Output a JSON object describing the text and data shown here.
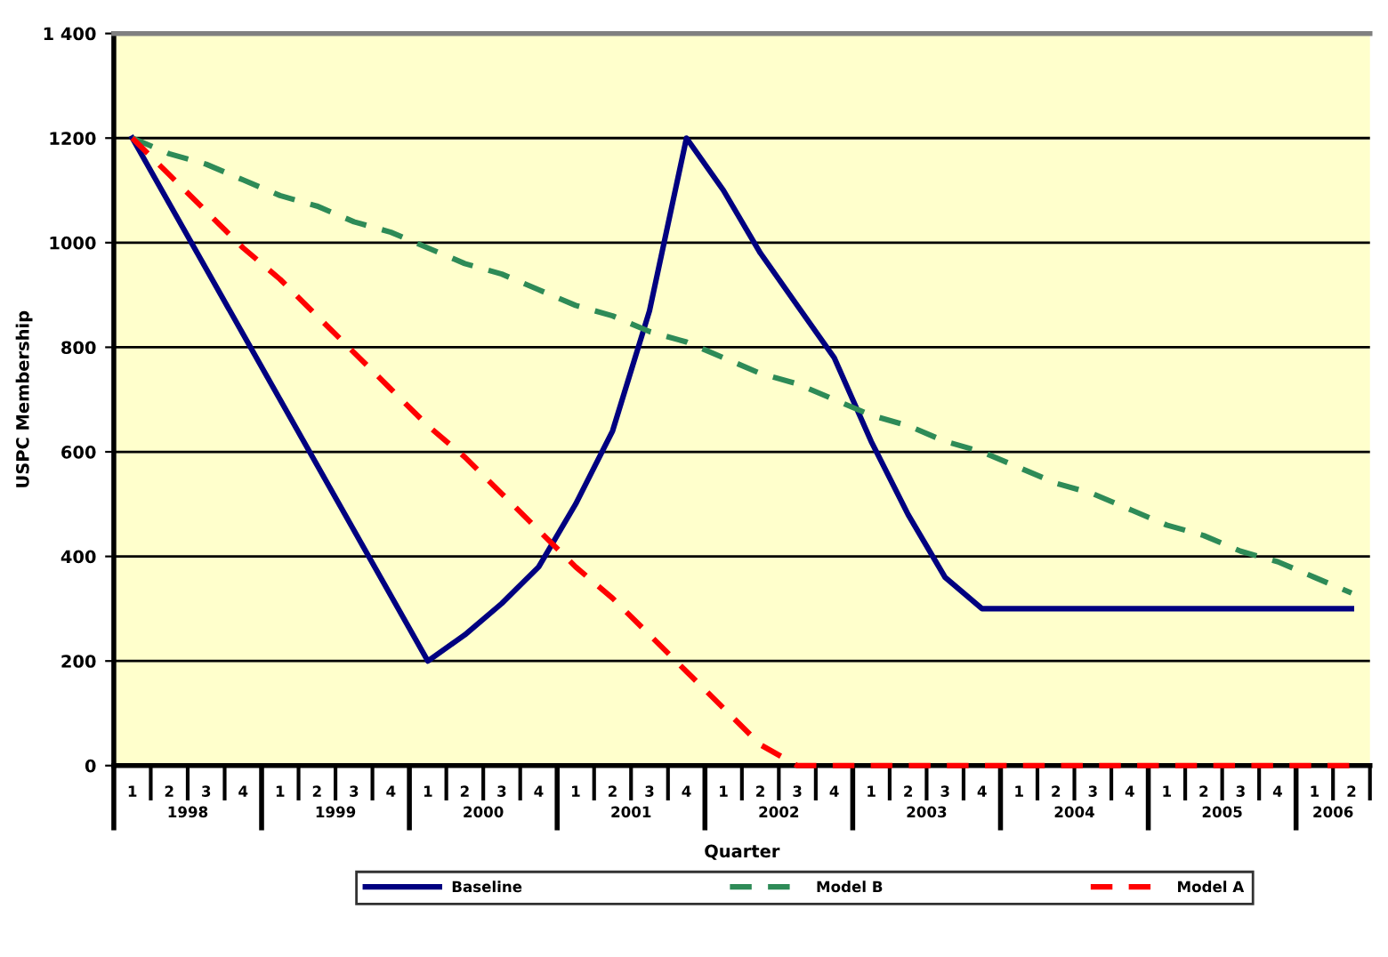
{
  "chart_data": {
    "type": "line",
    "xlabel": "Quarter",
    "ylabel": "USPC Membership",
    "categories": [
      "1",
      "2",
      "3",
      "4",
      "1",
      "2",
      "3",
      "4",
      "1",
      "2",
      "3",
      "4",
      "1",
      "2",
      "3",
      "4",
      "1",
      "2",
      "3",
      "4",
      "1",
      "2",
      "3",
      "4",
      "1",
      "2",
      "3",
      "4",
      "1",
      "2",
      "3",
      "4",
      "1",
      "2"
    ],
    "annotations": [
      "1998",
      "1999",
      "2000",
      "2001",
      "2002",
      "2003",
      "2004",
      "2005",
      "2006"
    ],
    "series": [
      {
        "name": "Baseline",
        "color": "#000080",
        "line_style": "solid",
        "values": [
          1200,
          1075,
          950,
          825,
          700,
          575,
          450,
          325,
          200,
          250,
          310,
          380,
          500,
          640,
          870,
          1200,
          1100,
          980,
          880,
          780,
          620,
          480,
          360,
          300,
          300,
          300,
          300,
          300,
          300,
          300,
          300,
          300,
          300,
          300
        ]
      },
      {
        "name": "Model B",
        "color": "#2e8b57",
        "line_style": "dashed",
        "values": [
          1200,
          1170,
          1150,
          1120,
          1090,
          1070,
          1040,
          1020,
          990,
          960,
          940,
          910,
          880,
          860,
          830,
          810,
          780,
          750,
          730,
          700,
          670,
          650,
          620,
          600,
          570,
          540,
          520,
          490,
          460,
          440,
          410,
          390,
          360,
          330
        ]
      },
      {
        "name": "Model A",
        "color": "#ff0000",
        "line_style": "dashed",
        "values": [
          1200,
          1130,
          1060,
          990,
          930,
          860,
          790,
          720,
          650,
          590,
          520,
          450,
          380,
          320,
          250,
          180,
          110,
          40,
          0,
          0,
          0,
          0,
          0,
          0,
          0,
          0,
          0,
          0,
          0,
          0,
          0,
          0,
          0,
          0
        ]
      }
    ],
    "ylim": [
      0,
      1400
    ],
    "yticks": [
      0,
      200,
      400,
      600,
      800,
      1000,
      1200,
      {
        "value": 1400,
        "label": "1 400"
      }
    ],
    "grid": "y",
    "legend": "bottom"
  }
}
